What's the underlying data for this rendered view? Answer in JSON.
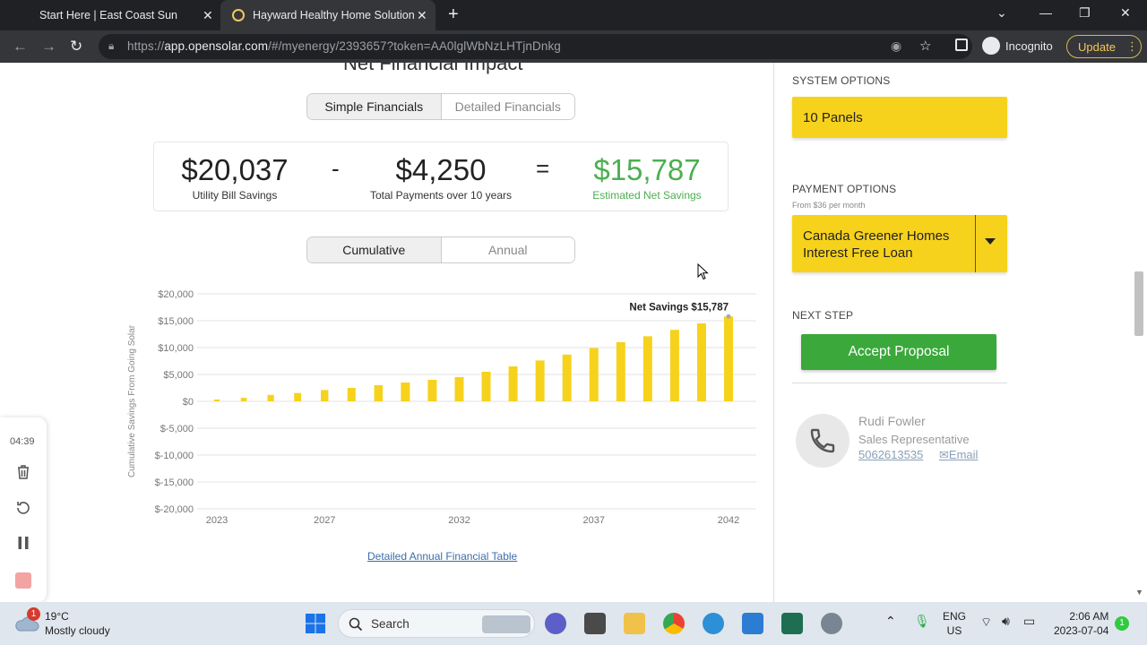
{
  "browser": {
    "tabs": [
      {
        "title": "Start Here | East Coast Sun"
      },
      {
        "title": "Hayward Healthy Home Solution"
      }
    ],
    "url_prefix": "https://",
    "url_domain": "app.opensolar.com",
    "url_rest": "/#/myenergy/2393657?token=AA0lglWbNzLHTjnDnkg",
    "incognito_label": "Incognito",
    "update_label": "Update"
  },
  "page": {
    "title": "Net Financial Impact",
    "financial_tabs": [
      "Simple Financials",
      "Detailed Financials"
    ],
    "summary": {
      "bill_savings": "$20,037",
      "bill_savings_label": "Utility Bill Savings",
      "minus": "-",
      "payments": "$4,250",
      "payments_label": "Total Payments over 10 years",
      "equals": "=",
      "net_savings": "$15,787",
      "net_savings_label": "Estimated Net Savings"
    },
    "chart_tabs": [
      "Cumulative",
      "Annual"
    ],
    "detail_link": "Detailed Annual Financial Table"
  },
  "chart_data": {
    "type": "bar",
    "ylabel": "Cumulative Savings From Going Solar",
    "ylim": [
      -20000,
      20000
    ],
    "yticks": [
      "$20,000",
      "$15,000",
      "$10,000",
      "$5,000",
      "$0",
      "$-5,000",
      "$-10,000",
      "$-15,000",
      "$-20,000"
    ],
    "xtick_labels": [
      "2023",
      "2027",
      "2032",
      "2037",
      "2042"
    ],
    "categories": [
      "2023",
      "2024",
      "2025",
      "2026",
      "2027",
      "2028",
      "2029",
      "2030",
      "2031",
      "2032",
      "2033",
      "2034",
      "2035",
      "2036",
      "2037",
      "2038",
      "2039",
      "2040",
      "2041",
      "2042"
    ],
    "values": [
      350,
      650,
      1200,
      1550,
      2100,
      2500,
      3000,
      3500,
      4000,
      4500,
      5500,
      6500,
      7600,
      8700,
      9900,
      11000,
      12100,
      13300,
      14500,
      15787
    ],
    "annotation": "Net Savings $15,787",
    "bar_color": "#f7d21c",
    "grid": true
  },
  "sidebar": {
    "system_label": "SYSTEM OPTIONS",
    "system_value": "10 Panels",
    "payment_label": "PAYMENT OPTIONS",
    "payment_note": "From $36 per month",
    "payment_value_line1": "Canada Greener Homes",
    "payment_value_line2": "Interest Free Loan",
    "next_label": "NEXT STEP",
    "accept_label": "Accept Proposal",
    "rep_name": "Rudi Fowler",
    "rep_title": "Sales Representative",
    "rep_phone": "5062613535",
    "rep_email": "Email"
  },
  "recorder": {
    "time": "04:39"
  },
  "taskbar": {
    "temperature": "19°C",
    "weather": "Mostly cloudy",
    "weather_badge": "1",
    "search_label": "Search",
    "lang1": "ENG",
    "lang2": "US",
    "time": "2:06 AM",
    "date": "2023-07-04",
    "notif_count": "1"
  }
}
